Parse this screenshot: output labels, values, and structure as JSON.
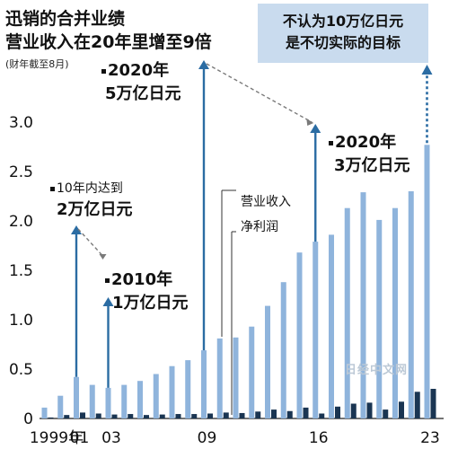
{
  "header": {
    "title_line1": "迅销的合并业绩",
    "title_line2": "营业收入在20年里增至9倍",
    "note": "(财年截至8月)"
  },
  "callout": {
    "line1": "不认为10万亿日元",
    "line2": "是不切实际的目标"
  },
  "annotations": {
    "a2020_5": {
      "line1": "2020年",
      "line2": "5万亿日元"
    },
    "a2020_3": {
      "line1": "2020年",
      "line2": "3万亿日元"
    },
    "a10y": {
      "line1": "10年内达到",
      "line2": "2万亿日元"
    },
    "a2010": {
      "line1": "2010年",
      "line2": "1万亿日元"
    }
  },
  "legend": {
    "revenue": "营业收入",
    "profit": "净利润"
  },
  "watermark": "日经中文网",
  "colors": {
    "revenue_bar": "#8fb4dc",
    "profit_bar": "#1a3552",
    "arrow": "#2b6ca3",
    "dashed_line": "#7a7a7a"
  },
  "chart_data": {
    "type": "bar",
    "title": "营业收入在20年里增至9倍",
    "xlabel": "",
    "ylabel": "",
    "ylim": [
      0,
      3.0
    ],
    "grid": false,
    "yticks": [
      "0",
      "0.5",
      "1.0",
      "1.5",
      "2.0",
      "2.5",
      "3.0"
    ],
    "categories": [
      "1999",
      "2000",
      "2001",
      "2002",
      "2003",
      "2004",
      "2005",
      "2006",
      "2007",
      "2008",
      "2009",
      "2010",
      "2011",
      "2012",
      "2013",
      "2014",
      "2015",
      "2016",
      "2017",
      "2018",
      "2019",
      "2020",
      "2021",
      "2022",
      "2023"
    ],
    "xtick_labels": [
      {
        "category": "1999",
        "label": "1999年"
      },
      {
        "category": "2001",
        "label": "01"
      },
      {
        "category": "2003",
        "label": "03"
      },
      {
        "category": "2009",
        "label": "09"
      },
      {
        "category": "2016",
        "label": "16"
      },
      {
        "category": "2023",
        "label": "23"
      }
    ],
    "series": [
      {
        "name": "营业收入",
        "values": [
          0.11,
          0.23,
          0.42,
          0.34,
          0.31,
          0.34,
          0.38,
          0.45,
          0.53,
          0.59,
          0.69,
          0.81,
          0.82,
          0.93,
          1.14,
          1.38,
          1.68,
          1.79,
          1.86,
          2.13,
          2.29,
          2.01,
          2.13,
          2.3,
          2.77
        ]
      },
      {
        "name": "净利润",
        "values": [
          0.01,
          0.035,
          0.06,
          0.05,
          0.04,
          0.045,
          0.035,
          0.04,
          0.045,
          0.045,
          0.05,
          0.06,
          0.055,
          0.07,
          0.09,
          0.075,
          0.11,
          0.05,
          0.12,
          0.15,
          0.16,
          0.09,
          0.17,
          0.27,
          0.3
        ]
      }
    ]
  }
}
